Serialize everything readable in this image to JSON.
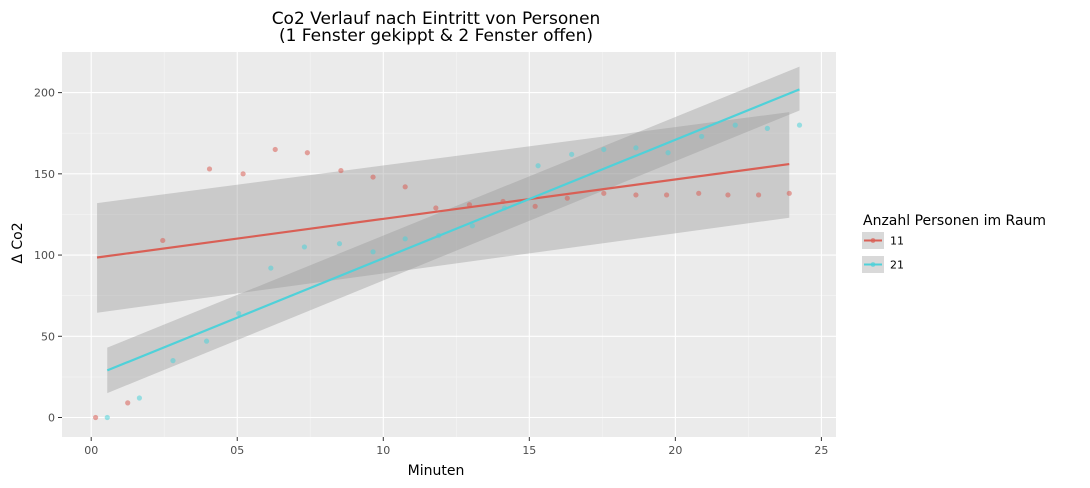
{
  "chart_data": {
    "type": "scatter",
    "title": "Co2 Verlauf nach Eintritt von Personen",
    "subtitle": "(1 Fenster gekippt & 2 Fenster offen)",
    "xlabel": "Minuten",
    "ylabel": "Δ Co2",
    "xlim": [
      -1,
      25.5
    ],
    "ylim": [
      -12,
      225
    ],
    "x_ticks": [
      0,
      5,
      10,
      15,
      20,
      25
    ],
    "x_tick_labels": [
      "00",
      "05",
      "10",
      "15",
      "20",
      "25"
    ],
    "y_ticks": [
      0,
      50,
      100,
      150,
      200
    ],
    "y_tick_labels": [
      "0",
      "50",
      "100",
      "150",
      "200"
    ],
    "grid": true,
    "legend": {
      "title": "Anzahl Personen im Raum",
      "placement": "right"
    },
    "series": [
      {
        "name": "11",
        "color": "#d95f55",
        "points": [
          [
            0.15,
            0
          ],
          [
            1.25,
            9
          ],
          [
            2.45,
            109
          ],
          [
            4.05,
            153
          ],
          [
            5.2,
            150
          ],
          [
            6.3,
            165
          ],
          [
            7.4,
            163
          ],
          [
            8.55,
            152
          ],
          [
            9.65,
            148
          ],
          [
            10.75,
            142
          ],
          [
            11.8,
            129
          ],
          [
            12.95,
            131
          ],
          [
            14.1,
            133
          ],
          [
            15.2,
            130
          ],
          [
            16.3,
            135
          ],
          [
            17.55,
            138
          ],
          [
            18.65,
            137
          ],
          [
            19.7,
            137
          ],
          [
            20.8,
            138
          ],
          [
            21.8,
            137
          ],
          [
            22.85,
            137
          ],
          [
            23.9,
            138
          ]
        ],
        "fit": {
          "x": [
            0.2,
            23.9
          ],
          "y": [
            98.5,
            156
          ]
        },
        "ci": {
          "x": [
            0.2,
            23.9
          ],
          "upper": [
            132,
            188
          ],
          "lower": [
            64.5,
            123
          ]
        }
      },
      {
        "name": "21",
        "color": "#4fd1d9",
        "points": [
          [
            0.55,
            0
          ],
          [
            1.65,
            12
          ],
          [
            2.8,
            35
          ],
          [
            3.95,
            47
          ],
          [
            5.05,
            64
          ],
          [
            6.15,
            92
          ],
          [
            7.3,
            105
          ],
          [
            8.5,
            107
          ],
          [
            9.65,
            102
          ],
          [
            10.75,
            110
          ],
          [
            11.9,
            112
          ],
          [
            13.05,
            118
          ],
          [
            14.15,
            129
          ],
          [
            15.3,
            155
          ],
          [
            16.45,
            162
          ],
          [
            17.55,
            165
          ],
          [
            18.65,
            166
          ],
          [
            19.75,
            163
          ],
          [
            20.9,
            173
          ],
          [
            22.05,
            180
          ],
          [
            23.15,
            178
          ],
          [
            24.25,
            180
          ]
        ],
        "fit": {
          "x": [
            0.55,
            24.25
          ],
          "y": [
            29,
            202
          ]
        },
        "ci": {
          "x": [
            0.55,
            24.25
          ],
          "upper": [
            43,
            216
          ],
          "lower": [
            15,
            189
          ]
        }
      }
    ]
  }
}
